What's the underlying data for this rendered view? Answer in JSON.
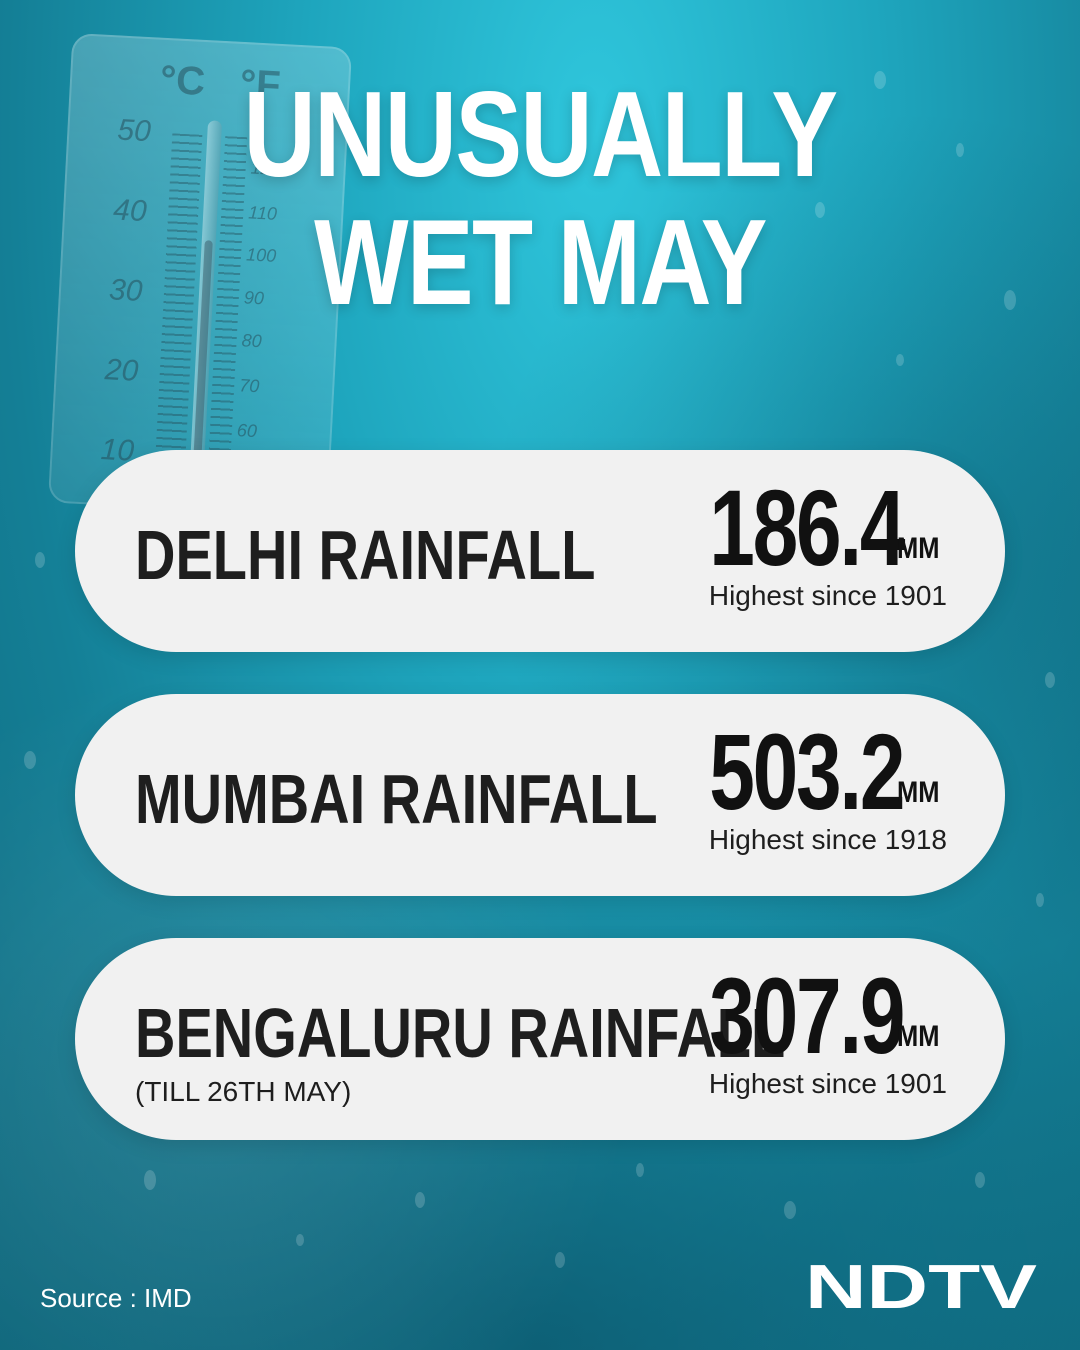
{
  "title": {
    "line1": "UNUSUALLY",
    "line2": "WET MAY"
  },
  "thermometer": {
    "celsius_unit": "°C",
    "fahrenheit_unit": "°F",
    "celsius_labels": [
      "50",
      "40",
      "30",
      "20",
      "10"
    ],
    "fahrenheit_labels": [
      "12",
      "110",
      "100",
      "90",
      "80",
      "70",
      "60"
    ]
  },
  "cards": [
    {
      "city": "DELHI RAINFALL",
      "sub": "",
      "value": "186.4",
      "unit": "MM",
      "note": "Highest since 1901"
    },
    {
      "city": "MUMBAI RAINFALL",
      "sub": "",
      "value": "503.2",
      "unit": "MM",
      "note": "Highest since 1918"
    },
    {
      "city": "BENGALURU RAINFALL",
      "sub": "(TILL 26TH MAY)",
      "value": "307.9",
      "unit": "MM",
      "note": "Highest since 1901"
    }
  ],
  "source": "Source : IMD",
  "logo": {
    "text": "NDTV",
    "color": "#ffffff"
  }
}
